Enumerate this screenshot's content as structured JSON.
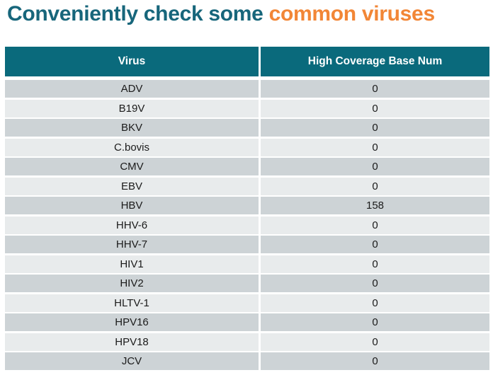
{
  "title": {
    "teal_part": "Conveniently check some ",
    "orange_part": "common viruses"
  },
  "table": {
    "headers": [
      "Virus",
      "High Coverage Base Num"
    ],
    "rows": [
      {
        "virus": "ADV",
        "value": "0"
      },
      {
        "virus": "B19V",
        "value": "0"
      },
      {
        "virus": "BKV",
        "value": "0"
      },
      {
        "virus": "C.bovis",
        "value": "0"
      },
      {
        "virus": "CMV",
        "value": "0"
      },
      {
        "virus": "EBV",
        "value": "0"
      },
      {
        "virus": "HBV",
        "value": "158"
      },
      {
        "virus": "HHV-6",
        "value": "0"
      },
      {
        "virus": "HHV-7",
        "value": "0"
      },
      {
        "virus": "HIV1",
        "value": "0"
      },
      {
        "virus": "HIV2",
        "value": "0"
      },
      {
        "virus": "HLTV-1",
        "value": "0"
      },
      {
        "virus": "HPV16",
        "value": "0"
      },
      {
        "virus": "HPV18",
        "value": "0"
      },
      {
        "virus": "JCV",
        "value": "0"
      }
    ]
  },
  "colors": {
    "title_teal": "#17667B",
    "title_orange": "#F28636",
    "header_bg": "#0A6A7C",
    "header_text": "#FFFFFF",
    "row_dark": "#CDD3D6",
    "row_light": "#E8EBEC",
    "body_text": "#1B1B1B",
    "page_bg": "#FFFFFF"
  },
  "chart_data": {
    "type": "table",
    "title": "Conveniently check some common viruses",
    "columns": [
      "Virus",
      "High Coverage Base Num"
    ],
    "rows": [
      [
        "ADV",
        0
      ],
      [
        "B19V",
        0
      ],
      [
        "BKV",
        0
      ],
      [
        "C.bovis",
        0
      ],
      [
        "CMV",
        0
      ],
      [
        "EBV",
        0
      ],
      [
        "HBV",
        158
      ],
      [
        "HHV-6",
        0
      ],
      [
        "HHV-7",
        0
      ],
      [
        "HIV1",
        0
      ],
      [
        "HIV2",
        0
      ],
      [
        "HLTV-1",
        0
      ],
      [
        "HPV16",
        0
      ],
      [
        "HPV18",
        0
      ],
      [
        "JCV",
        0
      ]
    ],
    "layout": {
      "zebra_striping": true,
      "values_centered": true,
      "highlight_row": "HBV"
    }
  }
}
